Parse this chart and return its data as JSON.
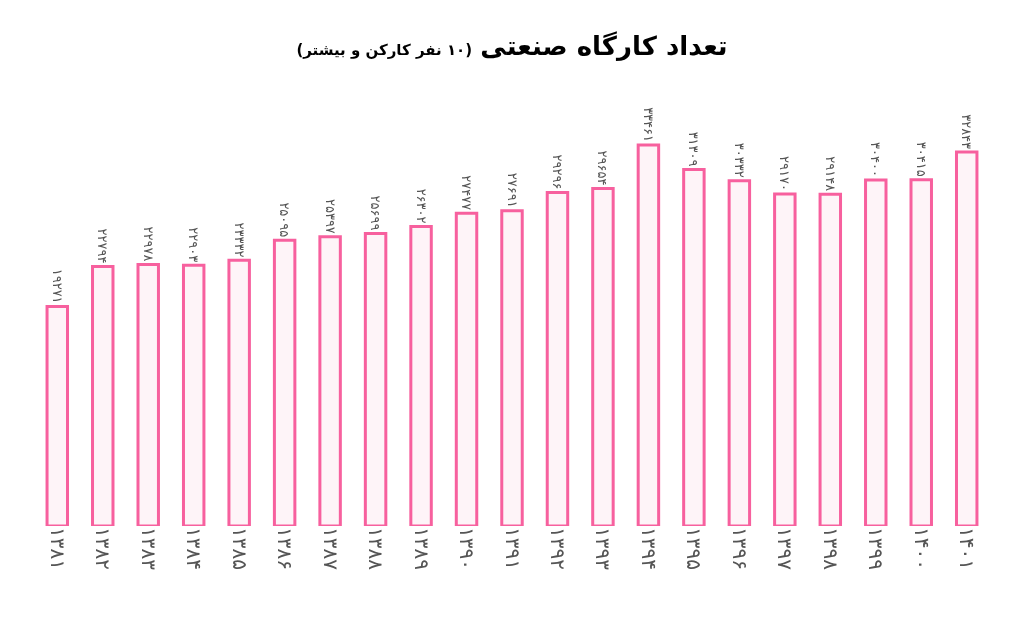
{
  "chart_data": {
    "type": "bar",
    "title": "تعداد کارگاه صنعتی",
    "subtitle": "(۱۰ نفر کارکن و بیشتر)",
    "categories": [
      "۱۳۸۱",
      "۱۳۸۲",
      "۱۳۸۳",
      "۱۳۸۴",
      "۱۳۸۵",
      "۱۳۸۶",
      "۱۳۸۷",
      "۱۳۸۸",
      "۱۳۸۹",
      "۱۳۹۰",
      "۱۳۹۱",
      "۱۳۹۲",
      "۱۳۹۳",
      "۱۳۹۴",
      "۱۳۹۵",
      "۱۳۹۶",
      "۱۳۹۷",
      "۱۳۹۸",
      "۱۳۹۹",
      "۱۴۰۰",
      "۱۴۰۱"
    ],
    "values": [
      19271,
      22794,
      22978,
      22903,
      23332,
      25095,
      25397,
      25699,
      26302,
      27477,
      27691,
      29296,
      29654,
      33461,
      31309,
      30332,
      29170,
      29148,
      30400,
      30415,
      32843
    ],
    "value_labels": [
      "۱۹۲۷۱",
      "۲۲۷۹۴",
      "۲۲۹۷۸",
      "۲۲۹۰۳",
      "۲۳۳۳۲",
      "۲۵۰۹۵",
      "۲۵۳۹۷",
      "۲۵۶۹۹",
      "۲۶۳۰۲",
      "۲۷۴۷۷",
      "۲۷۶۹۱",
      "۲۹۲۹۶",
      "۲۹۶۵۴",
      "۳۳۴۶۱",
      "۳۱۳۰۹",
      "۳۰۳۳۲",
      "۲۹۱۷۰",
      "۲۹۱۴۸",
      "۳۰۴۰۰",
      "۳۰۴۱۵",
      "۳۲۸۴۳"
    ],
    "color": "#f7609e",
    "legend": false
  }
}
